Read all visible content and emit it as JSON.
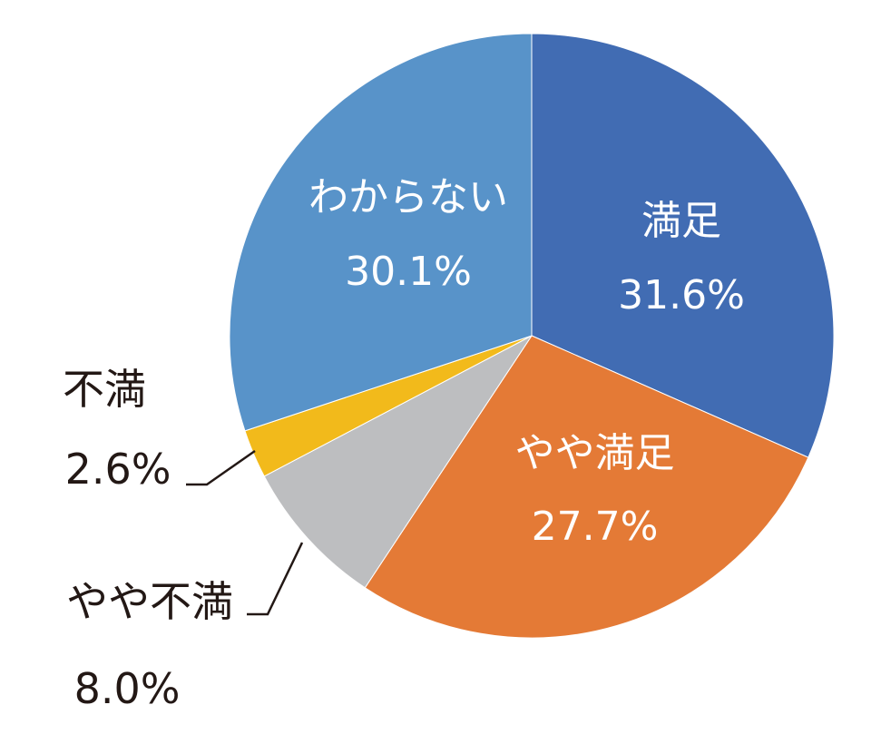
{
  "chart_data": {
    "type": "pie",
    "title": "",
    "start_angle_deg": 0,
    "direction": "clockwise",
    "slices": [
      {
        "label": "満足",
        "value": 31.6,
        "value_label": "31.6%",
        "color": "#416CB3"
      },
      {
        "label": "やや満足",
        "value": 27.7,
        "value_label": "27.7%",
        "color": "#E47A36"
      },
      {
        "label": "やや不満",
        "value": 8.0,
        "value_label": "8.0%",
        "color": "#BDBEC0"
      },
      {
        "label": "不満",
        "value": 2.6,
        "value_label": "2.6%",
        "color": "#F2BA1B"
      },
      {
        "label": "わからない",
        "value": 30.1,
        "value_label": "30.1%",
        "color": "#5893C9"
      }
    ],
    "legend": "none",
    "data_labels": "category and percentage"
  },
  "labels": {
    "manzoku": {
      "name": "満足",
      "pct": "31.6%"
    },
    "yaya_manzoku": {
      "name": "やや満足",
      "pct": "27.7%"
    },
    "yaya_fuman": {
      "name": "やや不満",
      "pct": "8.0%"
    },
    "fuman": {
      "name": "不満",
      "pct": "2.6%"
    },
    "wakaranai": {
      "name": "わからない",
      "pct": "30.1%"
    }
  }
}
